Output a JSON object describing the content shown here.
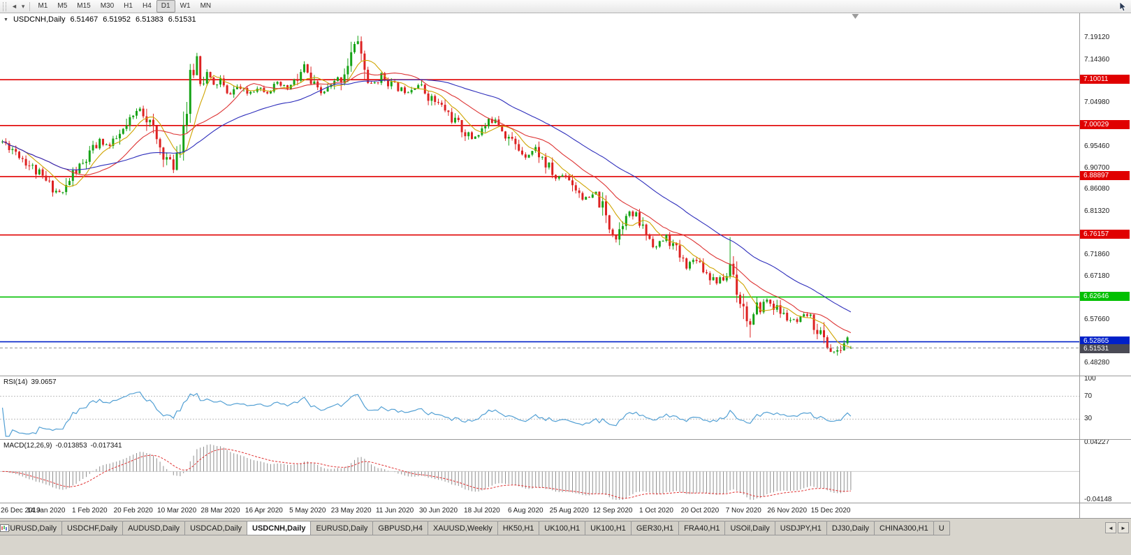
{
  "toolbar": {
    "timeframes": [
      "M1",
      "M5",
      "M15",
      "M30",
      "H1",
      "H4",
      "D1",
      "W1",
      "MN"
    ],
    "active_timeframe": "D1",
    "back_icon": "◄",
    "dropdown_icon": "▾"
  },
  "chart_header": {
    "collapse_icon": "▼",
    "symbol": "USDCNH,Daily",
    "open": "6.51467",
    "high": "6.51952",
    "low": "6.51383",
    "close": "6.51531"
  },
  "price_axis": {
    "labels": [
      "7.19120",
      "7.14360",
      "7.04980",
      "6.95460",
      "6.90700",
      "6.86080",
      "6.81320",
      "6.71860",
      "6.67180",
      "6.57660",
      "6.48280"
    ]
  },
  "time_axis": {
    "labels": [
      "26 Dec 2019",
      "14 Jan 2020",
      "1 Feb 2020",
      "20 Feb 2020",
      "10 Mar 2020",
      "28 Mar 2020",
      "16 Apr 2020",
      "5 May 2020",
      "23 May 2020",
      "11 Jun 2020",
      "30 Jun 2020",
      "18 Jul 2020",
      "6 Aug 2020",
      "25 Aug 2020",
      "12 Sep 2020",
      "1 Oct 2020",
      "20 Oct 2020",
      "7 Nov 2020",
      "26 Nov 2020",
      "15 Dec 2020"
    ],
    "candles_per_label": 13
  },
  "levels": [
    {
      "price": 7.10011,
      "label": "7.10011",
      "color": "#e00000"
    },
    {
      "price": 7.00029,
      "label": "7.00029",
      "color": "#e00000"
    },
    {
      "price": 6.88897,
      "label": "6.88897",
      "color": "#e00000"
    },
    {
      "price": 6.76157,
      "label": "6.76157",
      "color": "#e00000"
    },
    {
      "price": 6.62646,
      "label": "6.62646",
      "color": "#00c000"
    },
    {
      "price": 6.52865,
      "label": "6.52865",
      "color": "#0020c8"
    }
  ],
  "current_price": {
    "price": 6.51531,
    "label": "6.51531",
    "line_color": "#909090",
    "badge_color": "#4a4a55"
  },
  "indicators": {
    "rsi": {
      "name": "RSI(14)",
      "value": "39.0657",
      "period": 14,
      "color": "#53a0d4",
      "axis": [
        {
          "v": 100,
          "t": "100"
        },
        {
          "v": 70,
          "t": "70"
        },
        {
          "v": 30,
          "t": "30"
        }
      ],
      "level_lines": [
        70,
        30
      ]
    },
    "macd": {
      "name": "MACD(12,26,9)",
      "value_main": "-0.013853",
      "value_signal": "-0.017341",
      "fast": 12,
      "slow": 26,
      "signal": 9,
      "histogram_color": "#8f8f8f",
      "signal_color": "#e03030",
      "axis_max": 0.04227,
      "axis_min": -0.04148,
      "axis": [
        {
          "v": 0.04227,
          "t": "0.04227"
        },
        {
          "v": -0.04148,
          "t": "-0.04148"
        }
      ]
    }
  },
  "tabs": {
    "items": [
      "EURUSD,Daily",
      "USDCHF,Daily",
      "AUDUSD,Daily",
      "USDCAD,Daily",
      "USDCNH,Daily",
      "EURUSD,Daily",
      "GBPUSD,H4",
      "XAUUSD,Weekly",
      "HK50,H1",
      "UK100,H1",
      "UK100,H1",
      "GER30,H1",
      "FRA40,H1",
      "USOil,Daily",
      "USDJPY,H1",
      "DJ30,Daily",
      "CHINA300,H1",
      "U"
    ],
    "active_index": 4,
    "last_truncated": true,
    "scroll_left": "◄",
    "scroll_right": "►"
  },
  "colors": {
    "candle_up": "#17a317",
    "candle_down": "#dd2222",
    "background": "#ffffff",
    "panel_border": "#9a9a9a",
    "grid_level_dash": "#bdbdbd"
  },
  "chart_data": {
    "type": "candlestick",
    "title": "USDCNH,Daily",
    "symbol": "USDCNH",
    "timeframe": "Daily",
    "count": 254,
    "spacing": 4.8,
    "candle_width": 3,
    "seed": 11,
    "noise": 0.0045,
    "price_max": 7.245,
    "price_min": 6.455,
    "y_range_labels": [
      7.1912,
      6.4828
    ],
    "anchors": [
      [
        0,
        6.965
      ],
      [
        4,
        6.945
      ],
      [
        8,
        6.915
      ],
      [
        12,
        6.885
      ],
      [
        16,
        6.858
      ],
      [
        18,
        6.852
      ],
      [
        21,
        6.895
      ],
      [
        24,
        6.915
      ],
      [
        26,
        6.935
      ],
      [
        29,
        6.965
      ],
      [
        32,
        6.955
      ],
      [
        35,
        6.978
      ],
      [
        38,
        7.005
      ],
      [
        41,
        7.04
      ],
      [
        43,
        7.02
      ],
      [
        46,
        6.965
      ],
      [
        49,
        6.928
      ],
      [
        51,
        6.915
      ],
      [
        53,
        6.975
      ],
      [
        55,
        7.04
      ],
      [
        57,
        7.12
      ],
      [
        58,
        7.15
      ],
      [
        59,
        7.095
      ],
      [
        61,
        7.115
      ],
      [
        63,
        7.085
      ],
      [
        65,
        7.1
      ],
      [
        67,
        7.065
      ],
      [
        70,
        7.085
      ],
      [
        73,
        7.07
      ],
      [
        76,
        7.085
      ],
      [
        79,
        7.075
      ],
      [
        82,
        7.09
      ],
      [
        85,
        7.08
      ],
      [
        88,
        7.1
      ],
      [
        90,
        7.13
      ],
      [
        92,
        7.09
      ],
      [
        95,
        7.07
      ],
      [
        98,
        7.085
      ],
      [
        101,
        7.105
      ],
      [
        104,
        7.155
      ],
      [
        106,
        7.19
      ],
      [
        108,
        7.12
      ],
      [
        110,
        7.085
      ],
      [
        113,
        7.11
      ],
      [
        116,
        7.09
      ],
      [
        120,
        7.075
      ],
      [
        124,
        7.09
      ],
      [
        128,
        7.058
      ],
      [
        132,
        7.035
      ],
      [
        136,
        7.0
      ],
      [
        140,
        6.972
      ],
      [
        144,
        6.998
      ],
      [
        147,
        7.018
      ],
      [
        150,
        6.985
      ],
      [
        153,
        6.955
      ],
      [
        156,
        6.935
      ],
      [
        159,
        6.95
      ],
      [
        162,
        6.915
      ],
      [
        165,
        6.885
      ],
      [
        168,
        6.895
      ],
      [
        171,
        6.865
      ],
      [
        174,
        6.838
      ],
      [
        177,
        6.85
      ],
      [
        180,
        6.798
      ],
      [
        183,
        6.755
      ],
      [
        186,
        6.815
      ],
      [
        189,
        6.798
      ],
      [
        192,
        6.765
      ],
      [
        195,
        6.735
      ],
      [
        198,
        6.758
      ],
      [
        201,
        6.725
      ],
      [
        204,
        6.695
      ],
      [
        207,
        6.712
      ],
      [
        210,
        6.68
      ],
      [
        213,
        6.66
      ],
      [
        216,
        6.672
      ],
      [
        217,
        6.7
      ],
      [
        219,
        6.652
      ],
      [
        221,
        6.603
      ],
      [
        223,
        6.565
      ],
      [
        225,
        6.598
      ],
      [
        228,
        6.62
      ],
      [
        231,
        6.6
      ],
      [
        234,
        6.58
      ],
      [
        237,
        6.57
      ],
      [
        240,
        6.588
      ],
      [
        243,
        6.558
      ],
      [
        245,
        6.532
      ],
      [
        247,
        6.51
      ],
      [
        249,
        6.504
      ],
      [
        251,
        6.526
      ],
      [
        252,
        6.536
      ],
      [
        253,
        6.5153
      ]
    ],
    "spikes": [
      {
        "i": 106,
        "high": 7.196
      },
      {
        "i": 217,
        "high": 6.757
      },
      {
        "i": 223,
        "low": 6.538
      }
    ],
    "last_candle": {
      "o": 6.51467,
      "h": 6.51952,
      "l": 6.51383,
      "c": 6.51531
    },
    "moving_averages": [
      {
        "period": 8,
        "color": "#cfa400",
        "name": "ma-fast-yellow"
      },
      {
        "period": 20,
        "color": "#dd3333",
        "name": "ma-mid-red"
      },
      {
        "period": 45,
        "color": "#2d2dbb",
        "name": "ma-slow-blue"
      }
    ]
  }
}
